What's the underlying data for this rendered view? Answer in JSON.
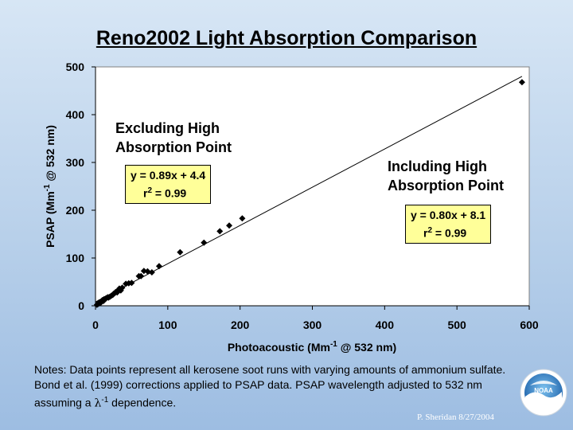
{
  "chart_data": {
    "type": "scatter",
    "title": "Reno2002 Light Absorption Comparison",
    "xlabel": {
      "pre": "Photoacoustic (Mm",
      "sup": "-1",
      "post": " @ 532 nm)"
    },
    "ylabel": {
      "pre": "PSAP (Mm",
      "sup": "-1",
      "post": " @ 532 nm)"
    },
    "xlim": [
      0,
      600
    ],
    "ylim": [
      0,
      500
    ],
    "xticks": [
      0,
      100,
      200,
      300,
      400,
      500,
      600
    ],
    "yticks": [
      0,
      100,
      200,
      300,
      400,
      500
    ],
    "grid": false,
    "points": [
      [
        2,
        2
      ],
      [
        4,
        4
      ],
      [
        5,
        7
      ],
      [
        7,
        6
      ],
      [
        8,
        9
      ],
      [
        9,
        11
      ],
      [
        10,
        12
      ],
      [
        11,
        10
      ],
      [
        12,
        14
      ],
      [
        14,
        15
      ],
      [
        15,
        16
      ],
      [
        17,
        18
      ],
      [
        18,
        17
      ],
      [
        20,
        19
      ],
      [
        22,
        21
      ],
      [
        24,
        23
      ],
      [
        25,
        25
      ],
      [
        27,
        27
      ],
      [
        28,
        29
      ],
      [
        30,
        28
      ],
      [
        32,
        33
      ],
      [
        33,
        36
      ],
      [
        35,
        32
      ],
      [
        37,
        38
      ],
      [
        42,
        46
      ],
      [
        46,
        47
      ],
      [
        50,
        48
      ],
      [
        60,
        62
      ],
      [
        63,
        62
      ],
      [
        67,
        73
      ],
      [
        72,
        72
      ],
      [
        78,
        70
      ],
      [
        88,
        83
      ],
      [
        117,
        112
      ],
      [
        150,
        132
      ],
      [
        172,
        156
      ],
      [
        185,
        168
      ],
      [
        203,
        183
      ],
      [
        590,
        468
      ]
    ],
    "fit_line": {
      "slope": 0.8,
      "intercept": 8.1,
      "x_range": [
        0,
        590
      ]
    },
    "annotations": [
      {
        "text": [
          "Excluding High",
          "Absorption Point"
        ],
        "equation": [
          "y = 0.89x + 4.4",
          "r2 = 0.99"
        ]
      },
      {
        "text": [
          "Including High",
          "Absorption Point"
        ],
        "equation": [
          "y = 0.80x + 8.1",
          "r2 = 0.99"
        ]
      }
    ]
  },
  "annot1": {
    "line1": "Excluding High",
    "line2": "Absorption Point",
    "eq": "y = 0.89x + 4.4",
    "r2_pre": "r",
    "r2_sup": "2",
    "r2_post": " = 0.99"
  },
  "annot2": {
    "line1": "Including High",
    "line2": "Absorption Point",
    "eq": "y = 0.80x + 8.1",
    "r2_pre": "r",
    "r2_sup": "2",
    "r2_post": " = 0.99"
  },
  "notes": {
    "main": "Notes:  Data points represent all kerosene soot runs with varying amounts of ammonium sulfate.  Bond et al. (1999) corrections applied to PSAP data.  PSAP wavelength adjusted to 532 nm assuming a ",
    "symbol": "λ",
    "sup": "-1",
    "tail": " dependence."
  },
  "signature": "P. Sheridan  8/27/2004",
  "logo_text": "NOAA",
  "colors": {
    "plot_bg": "#ffffff",
    "marker": "#000000",
    "line": "#000000",
    "eqbox": "#ffff99"
  }
}
